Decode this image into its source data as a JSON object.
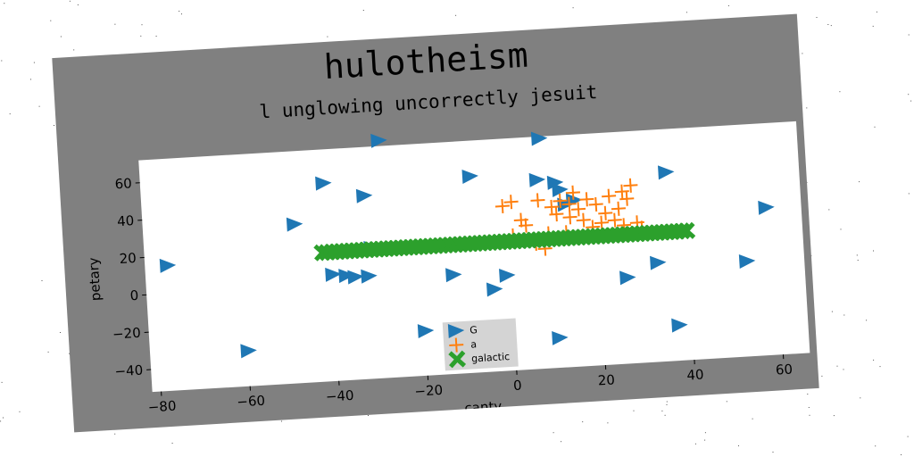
{
  "chart_data": {
    "type": "scatter",
    "title": "hulotheism",
    "subtitle": "l unglowing uncorrectly jesuit",
    "xlabel": "canty",
    "ylabel": "petary",
    "xlim": [
      -82,
      66
    ],
    "ylim": [
      -52,
      72
    ],
    "xticks": [
      -80,
      -60,
      -40,
      -20,
      0,
      20,
      40,
      60
    ],
    "xtick_labels": [
      "−80",
      "−60",
      "−40",
      "−20",
      "0",
      "20",
      "40",
      "60"
    ],
    "yticks": [
      -40,
      -20,
      0,
      20,
      40,
      60
    ],
    "ytick_labels": [
      "−40",
      "−20",
      "0",
      "20",
      "40",
      "60"
    ],
    "legend_position": "lower-center",
    "series": [
      {
        "name": "G",
        "marker": "triangle-right",
        "color": "#1f77b4",
        "points": [
          [
            -77,
            15
          ],
          [
            -60,
            -33
          ],
          [
            -48,
            33
          ],
          [
            -41,
            54
          ],
          [
            -40,
            5
          ],
          [
            -37,
            4
          ],
          [
            -35,
            3
          ],
          [
            -32,
            46
          ],
          [
            -32,
            3
          ],
          [
            -31,
            18
          ],
          [
            -28,
            75
          ],
          [
            -20,
            -28
          ],
          [
            -13,
            1
          ],
          [
            -8,
            53
          ],
          [
            -4,
            -8
          ],
          [
            -1,
            -1
          ],
          [
            7,
            49
          ],
          [
            8,
            71
          ],
          [
            10,
            -36
          ],
          [
            11,
            47
          ],
          [
            12,
            43
          ],
          [
            13,
            35
          ],
          [
            15,
            37
          ],
          [
            26,
            -6
          ],
          [
            33,
            1
          ],
          [
            36,
            49
          ],
          [
            37,
            -33
          ],
          [
            53,
            -1
          ],
          [
            58,
            27
          ]
        ]
      },
      {
        "name": "a",
        "marker": "plus",
        "color": "#ff7f0e",
        "points": [
          [
            -1,
            36
          ],
          [
            1,
            38
          ],
          [
            1,
            20
          ],
          [
            4,
            25
          ],
          [
            6,
            15
          ],
          [
            7,
            38
          ],
          [
            8,
            12
          ],
          [
            9,
            20
          ],
          [
            10,
            34
          ],
          [
            11,
            30
          ],
          [
            12,
            37
          ],
          [
            13,
            20
          ],
          [
            14,
            35
          ],
          [
            15,
            41
          ],
          [
            16,
            32
          ],
          [
            17,
            26
          ],
          [
            18,
            37
          ],
          [
            19,
            22
          ],
          [
            20,
            34
          ],
          [
            21,
            24
          ],
          [
            22,
            29
          ],
          [
            23,
            38
          ],
          [
            24,
            25
          ],
          [
            25,
            31
          ],
          [
            26,
            40
          ],
          [
            27,
            36
          ],
          [
            28,
            43
          ],
          [
            29,
            23
          ],
          [
            30,
            20
          ],
          [
            26,
            22
          ],
          [
            3,
            28
          ],
          [
            14,
            28
          ]
        ]
      },
      {
        "name": "galactic",
        "marker": "x-filled",
        "color": "#2ca02c",
        "x_range": [
          -42,
          40
        ],
        "count": 75,
        "y": 17
      }
    ]
  }
}
